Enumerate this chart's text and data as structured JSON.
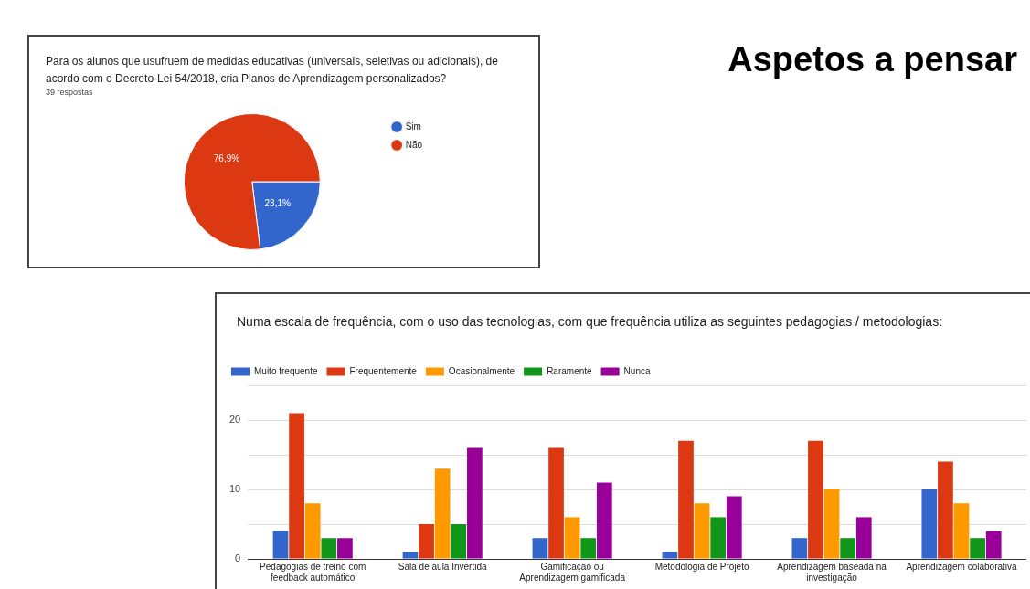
{
  "chart_data": [
    {
      "type": "pie",
      "title": "Para os alunos que usufruem de medidas educativas (universais, seletivas ou adicionais), de acordo com o Decreto-Lei 54/2018, cria Planos de Aprendizagem personalizados?",
      "subtitle": "39 respostas",
      "annotations": [
        "Aspetos a pensar"
      ],
      "categories": [
        "Sim",
        "Não"
      ],
      "values": [
        23.1,
        76.9
      ],
      "colors": [
        "#3366cc",
        "#dc3912"
      ],
      "value_labels": [
        "23,1%",
        "76,9%"
      ],
      "legend": "right"
    },
    {
      "type": "bar",
      "title": "Numa escala de frequência, com o uso das tecnologias, com que frequência utiliza as seguintes pedagogias / metodologias:",
      "categories": [
        "Pedagogias de treino com feedback automático",
        "Sala de aula Invertida",
        "Gamificação ou Aprendizagem gamificada",
        "Metodologia de Projeto",
        "Aprendizagem baseada na investigação",
        "Aprendizagem colaborativa"
      ],
      "series": [
        {
          "name": "Muito frequente",
          "color": "#3366cc",
          "values": [
            4,
            1,
            3,
            1,
            3,
            10
          ]
        },
        {
          "name": "Frequentemente",
          "color": "#dc3912",
          "values": [
            21,
            5,
            16,
            17,
            17,
            14
          ]
        },
        {
          "name": "Ocasionalmente",
          "color": "#ff9900",
          "values": [
            8,
            13,
            6,
            8,
            10,
            8
          ]
        },
        {
          "name": "Raramente",
          "color": "#109618",
          "values": [
            3,
            5,
            3,
            6,
            3,
            3
          ]
        },
        {
          "name": "Nunca",
          "color": "#990099",
          "values": [
            3,
            16,
            11,
            9,
            6,
            4
          ]
        }
      ],
      "ylim": [
        0,
        25
      ],
      "yticks": [
        0,
        {
          "value": 5,
          "label": null
        },
        10,
        {
          "value": 15,
          "label": null
        },
        20,
        {
          "value": 25,
          "label": null
        }
      ],
      "grid": "y",
      "legend": "top"
    }
  ]
}
